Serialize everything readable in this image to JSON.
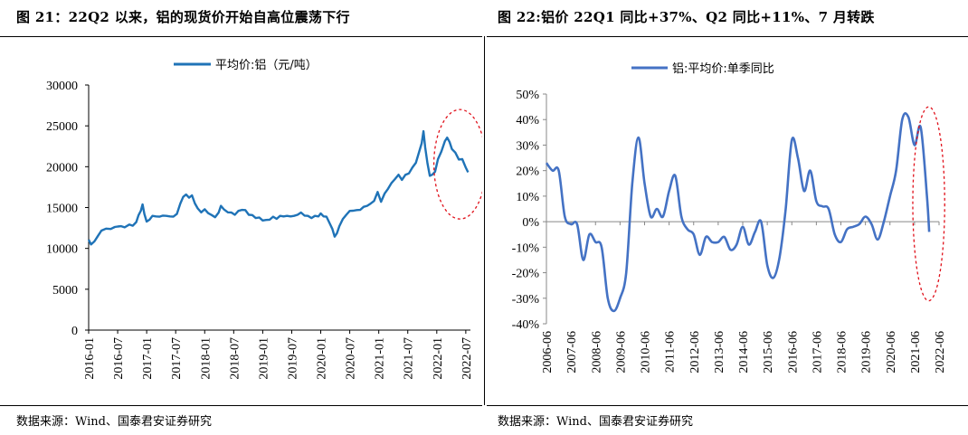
{
  "charts": {
    "left": {
      "title": "图 21：22Q2 以来，铝的现货价开始自高位震荡下行",
      "source": "数据来源：Wind、国泰君安证券研究"
    },
    "right": {
      "title": "图 22:铝价 22Q1 同比+37%、Q2 同比+11%、7 月转跌",
      "source": "数据来源：Wind、国泰君安证券研究"
    }
  },
  "chart_data": [
    {
      "type": "line",
      "title": "图 21：22Q2 以来，铝的现货价开始自高位震荡下行",
      "legend": "平均价:铝（元/吨）",
      "line_color": "#1f73b7",
      "highlight_color": "#e0101a",
      "ylim": [
        0,
        30000
      ],
      "yticks": [
        0,
        5000,
        10000,
        15000,
        20000,
        25000,
        30000
      ],
      "ytick_labels": [
        "0",
        "5000",
        "10000",
        "15000",
        "20000",
        "25000",
        "30000"
      ],
      "xticks": [
        "2016-01",
        "2016-07",
        "2017-01",
        "2017-07",
        "2018-01",
        "2018-07",
        "2019-01",
        "2019-07",
        "2020-01",
        "2020-07",
        "2021-01",
        "2021-07",
        "2022-01",
        "2022-07"
      ],
      "series": [
        {
          "name": "平均价:铝（元/吨）",
          "points": [
            [
              2016.0,
              11000
            ],
            [
              2016.04,
              10550
            ],
            [
              2016.1,
              10800
            ],
            [
              2016.16,
              11600
            ],
            [
              2016.22,
              12100
            ],
            [
              2016.3,
              12500
            ],
            [
              2016.38,
              12300
            ],
            [
              2016.45,
              12700
            ],
            [
              2016.5,
              12600
            ],
            [
              2016.56,
              12800
            ],
            [
              2016.62,
              12500
            ],
            [
              2016.7,
              13000
            ],
            [
              2016.76,
              12700
            ],
            [
              2016.82,
              13300
            ],
            [
              2016.86,
              14000
            ],
            [
              2016.9,
              14700
            ],
            [
              2016.93,
              15300
            ],
            [
              2016.96,
              14300
            ],
            [
              2017.0,
              13200
            ],
            [
              2017.05,
              13600
            ],
            [
              2017.1,
              13900
            ],
            [
              2017.16,
              14000
            ],
            [
              2017.22,
              13800
            ],
            [
              2017.28,
              14100
            ],
            [
              2017.34,
              13900
            ],
            [
              2017.4,
              14000
            ],
            [
              2017.46,
              13800
            ],
            [
              2017.52,
              14300
            ],
            [
              2017.58,
              15400
            ],
            [
              2017.63,
              16400
            ],
            [
              2017.68,
              16500
            ],
            [
              2017.73,
              16300
            ],
            [
              2017.78,
              16400
            ],
            [
              2017.83,
              15600
            ],
            [
              2017.88,
              14800
            ],
            [
              2017.94,
              14500
            ],
            [
              2018.0,
              14700
            ],
            [
              2018.06,
              14400
            ],
            [
              2018.12,
              14000
            ],
            [
              2018.18,
              13900
            ],
            [
              2018.24,
              14300
            ],
            [
              2018.28,
              15300
            ],
            [
              2018.33,
              14700
            ],
            [
              2018.4,
              14500
            ],
            [
              2018.46,
              14300
            ],
            [
              2018.52,
              14200
            ],
            [
              2018.58,
              14500
            ],
            [
              2018.64,
              14800
            ],
            [
              2018.7,
              14600
            ],
            [
              2018.76,
              14200
            ],
            [
              2018.82,
              14000
            ],
            [
              2018.88,
              13800
            ],
            [
              2018.94,
              13700
            ],
            [
              2019.0,
              13500
            ],
            [
              2019.06,
              13400
            ],
            [
              2019.12,
              13600
            ],
            [
              2019.18,
              13800
            ],
            [
              2019.24,
              13700
            ],
            [
              2019.3,
              13900
            ],
            [
              2019.36,
              14000
            ],
            [
              2019.42,
              13900
            ],
            [
              2019.48,
              14000
            ],
            [
              2019.54,
              13900
            ],
            [
              2019.6,
              14200
            ],
            [
              2019.66,
              14300
            ],
            [
              2019.72,
              14100
            ],
            [
              2019.78,
              13900
            ],
            [
              2019.84,
              13800
            ],
            [
              2019.9,
              13900
            ],
            [
              2019.96,
              14000
            ],
            [
              2020.0,
              14200
            ],
            [
              2020.05,
              14000
            ],
            [
              2020.1,
              13800
            ],
            [
              2020.15,
              13200
            ],
            [
              2020.2,
              12300
            ],
            [
              2020.24,
              11500
            ],
            [
              2020.28,
              11800
            ],
            [
              2020.32,
              12800
            ],
            [
              2020.38,
              13500
            ],
            [
              2020.44,
              14200
            ],
            [
              2020.5,
              14500
            ],
            [
              2020.56,
              14700
            ],
            [
              2020.62,
              14600
            ],
            [
              2020.68,
              14800
            ],
            [
              2020.74,
              15000
            ],
            [
              2020.8,
              15300
            ],
            [
              2020.86,
              15400
            ],
            [
              2020.92,
              15900
            ],
            [
              2020.98,
              16800
            ],
            [
              2021.04,
              15800
            ],
            [
              2021.1,
              16600
            ],
            [
              2021.16,
              17400
            ],
            [
              2021.22,
              17900
            ],
            [
              2021.28,
              18600
            ],
            [
              2021.34,
              18900
            ],
            [
              2021.4,
              18500
            ],
            [
              2021.46,
              18900
            ],
            [
              2021.52,
              19300
            ],
            [
              2021.58,
              19800
            ],
            [
              2021.64,
              20600
            ],
            [
              2021.7,
              21800
            ],
            [
              2021.74,
              23000
            ],
            [
              2021.77,
              24200
            ],
            [
              2021.8,
              22500
            ],
            [
              2021.84,
              20300
            ],
            [
              2021.88,
              19000
            ],
            [
              2021.92,
              18900
            ],
            [
              2021.97,
              19500
            ],
            [
              2022.02,
              20800
            ],
            [
              2022.08,
              22000
            ],
            [
              2022.14,
              23000
            ],
            [
              2022.18,
              23700
            ],
            [
              2022.22,
              22900
            ],
            [
              2022.26,
              22300
            ],
            [
              2022.32,
              21600
            ],
            [
              2022.38,
              21000
            ],
            [
              2022.44,
              20800
            ],
            [
              2022.5,
              20000
            ],
            [
              2022.54,
              19200
            ]
          ]
        }
      ],
      "annotation": {
        "type": "dashed-ellipse",
        "x_center": 2022.4,
        "y_center": 20300,
        "x_halfwidth": 0.45,
        "y_halfwidth": 6700
      }
    },
    {
      "type": "line",
      "title": "图 22:铝价 22Q1 同比+37%、Q2 同比+11%、7 月转跌",
      "legend": "铝:平均价:单季同比",
      "line_color": "#4472c4",
      "highlight_color": "#e0101a",
      "ylim": [
        -40,
        50
      ],
      "yticks": [
        -40,
        -30,
        -20,
        -10,
        0,
        10,
        20,
        30,
        40,
        50
      ],
      "ytick_labels": [
        "-40%",
        "-30%",
        "-20%",
        "-10%",
        "0%",
        "10%",
        "20%",
        "30%",
        "40%",
        "50%"
      ],
      "xticks": [
        "2006-06",
        "2007-06",
        "2008-06",
        "2009-06",
        "2010-06",
        "2011-06",
        "2012-06",
        "2013-06",
        "2014-06",
        "2015-06",
        "2016-06",
        "2017-06",
        "2018-06",
        "2019-06",
        "2020-06",
        "2021-06",
        "2022-06"
      ],
      "series": [
        {
          "name": "铝:平均价:单季同比",
          "points": [
            [
              2006.5,
              23
            ],
            [
              2006.75,
              20
            ],
            [
              2007.0,
              20
            ],
            [
              2007.25,
              2
            ],
            [
              2007.5,
              -1
            ],
            [
              2007.75,
              -1
            ],
            [
              2008.0,
              -15
            ],
            [
              2008.25,
              -5
            ],
            [
              2008.5,
              -8
            ],
            [
              2008.75,
              -10
            ],
            [
              2009.0,
              -30
            ],
            [
              2009.25,
              -35
            ],
            [
              2009.5,
              -30
            ],
            [
              2009.75,
              -20
            ],
            [
              2010.0,
              15
            ],
            [
              2010.25,
              33
            ],
            [
              2010.5,
              15
            ],
            [
              2010.75,
              2
            ],
            [
              2011.0,
              5
            ],
            [
              2011.25,
              2
            ],
            [
              2011.5,
              12
            ],
            [
              2011.75,
              18
            ],
            [
              2012.0,
              2
            ],
            [
              2012.25,
              -3
            ],
            [
              2012.5,
              -5
            ],
            [
              2012.75,
              -13
            ],
            [
              2013.0,
              -6
            ],
            [
              2013.25,
              -8
            ],
            [
              2013.5,
              -8
            ],
            [
              2013.75,
              -6
            ],
            [
              2014.0,
              -11
            ],
            [
              2014.25,
              -9
            ],
            [
              2014.5,
              -2
            ],
            [
              2014.75,
              -9
            ],
            [
              2015.0,
              -4
            ],
            [
              2015.25,
              0
            ],
            [
              2015.5,
              -17
            ],
            [
              2015.75,
              -22
            ],
            [
              2016.0,
              -14
            ],
            [
              2016.25,
              5
            ],
            [
              2016.5,
              32
            ],
            [
              2016.75,
              25
            ],
            [
              2017.0,
              12
            ],
            [
              2017.25,
              20
            ],
            [
              2017.5,
              8
            ],
            [
              2017.75,
              6
            ],
            [
              2018.0,
              5
            ],
            [
              2018.25,
              -5
            ],
            [
              2018.5,
              -8
            ],
            [
              2018.75,
              -3
            ],
            [
              2019.0,
              -2
            ],
            [
              2019.25,
              -1
            ],
            [
              2019.5,
              2
            ],
            [
              2019.75,
              -1
            ],
            [
              2020.0,
              -7
            ],
            [
              2020.25,
              0
            ],
            [
              2020.5,
              10
            ],
            [
              2020.75,
              20
            ],
            [
              2021.0,
              40
            ],
            [
              2021.25,
              41
            ],
            [
              2021.5,
              30
            ],
            [
              2021.75,
              37
            ],
            [
              2022.0,
              11
            ],
            [
              2022.1,
              -4
            ]
          ]
        }
      ],
      "annotation": {
        "type": "dashed-ellipse",
        "x_center": 2022.08,
        "y_center": 7,
        "x_halfwidth": 0.65,
        "y_halfwidth": 38
      }
    }
  ]
}
